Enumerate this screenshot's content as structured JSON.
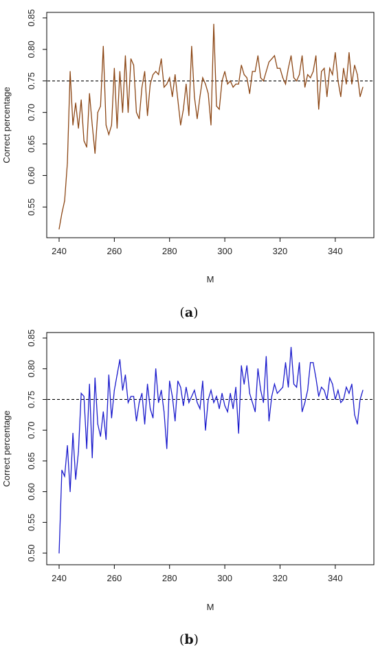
{
  "chart_data": [
    {
      "type": "line",
      "caption_letter": "a",
      "xlabel": "M",
      "ylabel": "Correct percentage",
      "xlim": [
        240,
        350
      ],
      "ylim": [
        0.51,
        0.85
      ],
      "xticks": [
        240,
        260,
        280,
        300,
        320,
        340
      ],
      "yticks": [
        0.55,
        0.6,
        0.65,
        0.7,
        0.75,
        0.8,
        0.85
      ],
      "ytick_labels": [
        "0.55",
        "0.60",
        "0.65",
        "0.70",
        "0.75",
        "0.80",
        "0.85"
      ],
      "reference_line": 0.75,
      "line_color": "#8b4513",
      "series": [
        {
          "x": [
            240,
            241,
            242,
            243,
            244,
            245,
            246,
            247,
            248,
            249,
            250,
            251,
            252,
            253,
            254,
            255,
            256,
            257,
            258,
            259,
            260,
            261,
            262,
            263,
            264,
            265,
            266,
            267,
            268,
            269,
            270,
            271,
            272,
            273,
            274,
            275,
            276,
            277,
            278,
            279,
            280,
            281,
            282,
            283,
            284,
            285,
            286,
            287,
            288,
            289,
            290,
            291,
            292,
            293,
            294,
            295,
            296,
            297,
            298,
            299,
            300,
            301,
            302,
            303,
            304,
            305,
            306,
            307,
            308,
            309,
            310,
            311,
            312,
            313,
            314,
            315,
            316,
            317,
            318,
            319,
            320,
            321,
            322,
            323,
            324,
            325,
            326,
            327,
            328,
            329,
            330,
            331,
            332,
            333,
            334,
            335,
            336,
            337,
            338,
            339,
            340,
            341,
            342,
            343,
            344,
            345,
            346,
            347,
            348,
            349,
            350
          ],
          "values": [
            0.515,
            0.54,
            0.56,
            0.62,
            0.765,
            0.68,
            0.715,
            0.675,
            0.72,
            0.655,
            0.645,
            0.73,
            0.68,
            0.635,
            0.7,
            0.71,
            0.805,
            0.68,
            0.665,
            0.68,
            0.77,
            0.675,
            0.765,
            0.7,
            0.79,
            0.7,
            0.785,
            0.775,
            0.7,
            0.69,
            0.74,
            0.765,
            0.695,
            0.745,
            0.76,
            0.765,
            0.76,
            0.785,
            0.74,
            0.745,
            0.755,
            0.725,
            0.76,
            0.72,
            0.68,
            0.705,
            0.745,
            0.695,
            0.805,
            0.725,
            0.69,
            0.725,
            0.755,
            0.745,
            0.73,
            0.68,
            0.84,
            0.71,
            0.705,
            0.75,
            0.765,
            0.745,
            0.75,
            0.74,
            0.745,
            0.745,
            0.775,
            0.76,
            0.755,
            0.73,
            0.765,
            0.765,
            0.79,
            0.755,
            0.75,
            0.765,
            0.78,
            0.785,
            0.79,
            0.77,
            0.77,
            0.755,
            0.745,
            0.77,
            0.79,
            0.755,
            0.75,
            0.76,
            0.79,
            0.74,
            0.76,
            0.755,
            0.765,
            0.79,
            0.705,
            0.765,
            0.77,
            0.725,
            0.77,
            0.76,
            0.795,
            0.75,
            0.725,
            0.77,
            0.745,
            0.795,
            0.745,
            0.775,
            0.76,
            0.725,
            0.74
          ],
          "name": ""
        }
      ]
    },
    {
      "type": "line",
      "caption_letter": "b",
      "xlabel": "M",
      "ylabel": "Correct percentage",
      "xlim": [
        240,
        350
      ],
      "ylim": [
        0.49,
        0.85
      ],
      "xticks": [
        240,
        260,
        280,
        300,
        320,
        340
      ],
      "yticks": [
        0.5,
        0.55,
        0.6,
        0.65,
        0.7,
        0.75,
        0.8,
        0.85
      ],
      "ytick_labels": [
        "0.50",
        "0.55",
        "0.60",
        "0.65",
        "0.70",
        "0.75",
        "0.80",
        "0.85"
      ],
      "reference_line": 0.75,
      "line_color": "#1a1acc",
      "series": [
        {
          "x": [
            240,
            241,
            242,
            243,
            244,
            245,
            246,
            247,
            248,
            249,
            250,
            251,
            252,
            253,
            254,
            255,
            256,
            257,
            258,
            259,
            260,
            261,
            262,
            263,
            264,
            265,
            266,
            267,
            268,
            269,
            270,
            271,
            272,
            273,
            274,
            275,
            276,
            277,
            278,
            279,
            280,
            281,
            282,
            283,
            284,
            285,
            286,
            287,
            288,
            289,
            290,
            291,
            292,
            293,
            294,
            295,
            296,
            297,
            298,
            299,
            300,
            301,
            302,
            303,
            304,
            305,
            306,
            307,
            308,
            309,
            310,
            311,
            312,
            313,
            314,
            315,
            316,
            317,
            318,
            319,
            320,
            321,
            322,
            323,
            324,
            325,
            326,
            327,
            328,
            329,
            330,
            331,
            332,
            333,
            334,
            335,
            336,
            337,
            338,
            339,
            340,
            341,
            342,
            343,
            344,
            345,
            346,
            347,
            348,
            349,
            350
          ],
          "values": [
            0.5,
            0.635,
            0.625,
            0.675,
            0.6,
            0.695,
            0.62,
            0.665,
            0.76,
            0.755,
            0.67,
            0.775,
            0.655,
            0.785,
            0.71,
            0.69,
            0.73,
            0.685,
            0.79,
            0.72,
            0.765,
            0.79,
            0.815,
            0.765,
            0.79,
            0.745,
            0.755,
            0.755,
            0.715,
            0.745,
            0.76,
            0.71,
            0.775,
            0.735,
            0.72,
            0.8,
            0.745,
            0.765,
            0.73,
            0.67,
            0.78,
            0.755,
            0.715,
            0.78,
            0.77,
            0.74,
            0.77,
            0.745,
            0.755,
            0.765,
            0.745,
            0.735,
            0.78,
            0.7,
            0.75,
            0.765,
            0.745,
            0.755,
            0.735,
            0.76,
            0.74,
            0.73,
            0.76,
            0.735,
            0.77,
            0.695,
            0.805,
            0.775,
            0.805,
            0.76,
            0.745,
            0.73,
            0.8,
            0.765,
            0.745,
            0.82,
            0.715,
            0.755,
            0.775,
            0.76,
            0.765,
            0.77,
            0.81,
            0.77,
            0.835,
            0.775,
            0.77,
            0.81,
            0.73,
            0.745,
            0.765,
            0.81,
            0.81,
            0.785,
            0.755,
            0.77,
            0.765,
            0.75,
            0.785,
            0.775,
            0.75,
            0.765,
            0.745,
            0.75,
            0.77,
            0.76,
            0.775,
            0.725,
            0.71,
            0.75,
            0.765
          ],
          "name": ""
        }
      ]
    }
  ]
}
